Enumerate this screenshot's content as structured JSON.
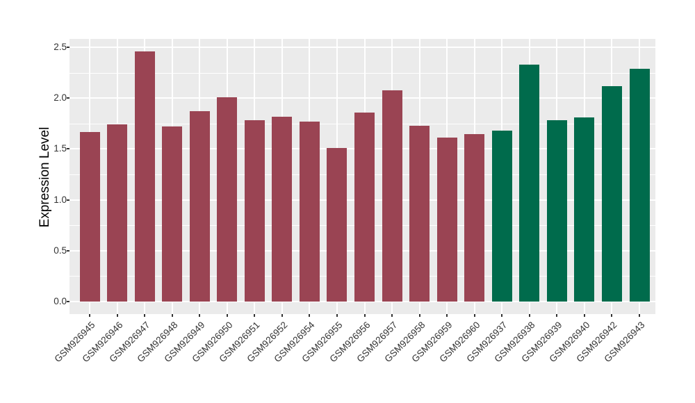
{
  "chart_data": {
    "type": "bar",
    "title": "",
    "xlabel": "",
    "ylabel": "Expression Level",
    "ylim": [
      0,
      2.5
    ],
    "yticks": [
      0,
      0.5,
      1,
      1.5,
      2,
      2.5
    ],
    "ytick_labels": [
      "0.0",
      "0.5",
      "1.0",
      "1.5",
      "2.0",
      "2.5"
    ],
    "yticks_minor": [
      0.25,
      0.75,
      1.25,
      1.75,
      2.25
    ],
    "grid": "on",
    "legend": "none",
    "categories": [
      "GSM926945",
      "GSM926946",
      "GSM926947",
      "GSM926948",
      "GSM926949",
      "GSM926950",
      "GSM926951",
      "GSM926952",
      "GSM926954",
      "GSM926955",
      "GSM926956",
      "GSM926957",
      "GSM926958",
      "GSM926959",
      "GSM926960",
      "GSM926937",
      "GSM926938",
      "GSM926939",
      "GSM926940",
      "GSM926942",
      "GSM926943"
    ],
    "values": [
      1.67,
      1.74,
      2.46,
      1.72,
      1.87,
      2.01,
      1.78,
      1.82,
      1.77,
      1.51,
      1.86,
      2.08,
      1.73,
      1.61,
      1.65,
      1.68,
      2.33,
      1.78,
      1.81,
      2.12,
      2.29
    ],
    "bar_groups": [
      "group1",
      "group1",
      "group1",
      "group1",
      "group1",
      "group1",
      "group1",
      "group1",
      "group1",
      "group1",
      "group1",
      "group1",
      "group1",
      "group1",
      "group1",
      "group2",
      "group2",
      "group2",
      "group2",
      "group2",
      "group2"
    ],
    "group_colors": {
      "group1": "#9A4453",
      "group2": "#006B4C"
    },
    "panel_bg": "#EBEBEB",
    "grid_color": "#FFFFFF",
    "tick_color": "#333333"
  }
}
